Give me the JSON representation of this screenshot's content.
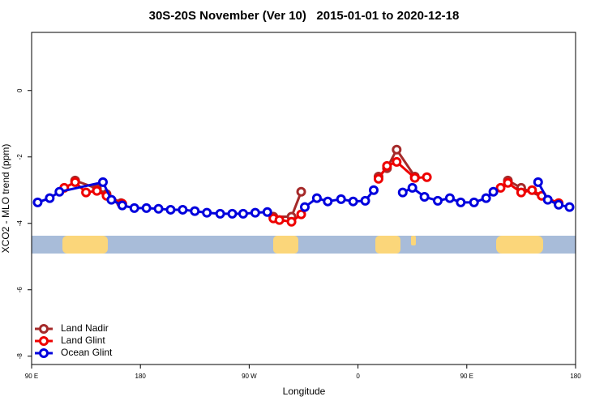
{
  "chart_data": {
    "type": "line",
    "title": "30S-20S November (Ver 10)   2015-01-01 to 2020-12-18",
    "xlabel": "Longitude",
    "ylabel": "XCO2 - MLO trend (ppm)",
    "xlim": [
      90,
      540
    ],
    "ylim": [
      -8.25,
      1.75
    ],
    "xticks": [
      {
        "value": 90,
        "label": "90 E"
      },
      180,
      {
        "value": 270,
        "label": "90 W"
      },
      {
        "value": 360,
        "label": "0"
      },
      {
        "value": 450,
        "label": "90 E"
      },
      {
        "value": 540,
        "label": "180"
      }
    ],
    "yticks": [
      0,
      -2,
      -4,
      -6,
      -8
    ],
    "legend": "lower left",
    "series": [
      {
        "name": "Land Nadir",
        "color": "#a52a2a",
        "x": [
          126,
          144,
          152,
          164,
          null,
          290,
          305,
          313,
          null,
          377,
          384,
          392,
          407,
          null,
          484,
          495,
          526
        ],
        "values": [
          -2.71,
          -2.95,
          -3.12,
          -3.39,
          null,
          -3.8,
          -3.8,
          -3.05,
          null,
          -2.59,
          -2.34,
          -1.78,
          -2.59,
          null,
          -2.71,
          -2.93,
          -3.41
        ]
      },
      {
        "name": "Land Glint",
        "color": "#ee0000",
        "x": [
          117,
          126,
          135,
          144,
          152,
          165,
          null,
          290,
          295,
          305,
          313,
          null,
          377,
          384,
          392,
          407,
          417,
          null,
          478,
          484,
          495,
          504,
          512,
          526
        ],
        "values": [
          -2.93,
          -2.76,
          -3.07,
          -3.02,
          -3.17,
          -3.41,
          null,
          -3.85,
          -3.9,
          -3.95,
          -3.73,
          null,
          -2.66,
          -2.27,
          -2.15,
          -2.63,
          -2.61,
          null,
          -2.93,
          -2.78,
          -3.07,
          -3.0,
          -3.17,
          -3.39
        ]
      },
      {
        "name": "Ocean Glint",
        "color": "#0000dd",
        "x": [
          95,
          105,
          113,
          149,
          156,
          165,
          175,
          185,
          195,
          205,
          215,
          225,
          235,
          246,
          256,
          265,
          275,
          285,
          null,
          316,
          326,
          335,
          346,
          356,
          366,
          373,
          null,
          397,
          405,
          415,
          426,
          436,
          445,
          456,
          466,
          472,
          null,
          509,
          517,
          526,
          535
        ],
        "values": [
          -3.37,
          -3.24,
          -3.05,
          -2.76,
          -3.29,
          -3.46,
          -3.54,
          -3.54,
          -3.56,
          -3.59,
          -3.59,
          -3.63,
          -3.68,
          -3.71,
          -3.71,
          -3.71,
          -3.68,
          -3.66,
          null,
          -3.51,
          -3.24,
          -3.34,
          -3.27,
          -3.34,
          -3.32,
          -3.0,
          null,
          -3.07,
          -2.93,
          -3.2,
          -3.32,
          -3.24,
          -3.37,
          -3.37,
          -3.24,
          -3.05,
          null,
          -2.76,
          -3.29,
          -3.44,
          -3.51
        ]
      }
    ]
  }
}
